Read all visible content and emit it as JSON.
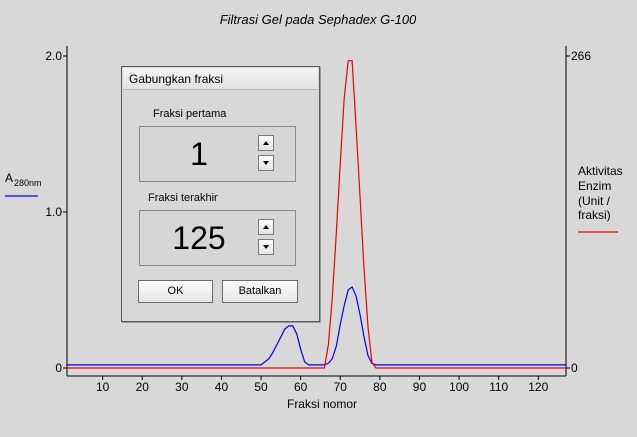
{
  "chart_data": {
    "type": "line",
    "title": "Filtrasi Gel pada Sephadex G-100",
    "xlabel": "Fraksi nomor",
    "ylabel_left": "A",
    "ylabel_left_sub": "280nm",
    "ylabel_right": [
      "Aktivitas",
      "Enzim",
      "(Unit /",
      "fraksi)"
    ],
    "xlim": [
      1,
      127
    ],
    "x_ticks": [
      10,
      20,
      30,
      40,
      50,
      60,
      70,
      80,
      90,
      100,
      110,
      120
    ],
    "ylim_left": [
      0,
      2.0
    ],
    "y_left_ticks": [
      "0",
      "1.0",
      "2.0"
    ],
    "ylim_right": [
      0,
      266
    ],
    "y_right_ticks": [
      "0",
      "266"
    ],
    "series": [
      {
        "name": "A",
        "axis": "left",
        "color": "#0000ee",
        "x": [
          1,
          49,
          50,
          51,
          52,
          53,
          54,
          55,
          56,
          57,
          58,
          59,
          60,
          61,
          62,
          63,
          64,
          65,
          66,
          67,
          68,
          69,
          70,
          71,
          72,
          73,
          74,
          75,
          76,
          77,
          78,
          79,
          80,
          127
        ],
        "y": [
          0.02,
          0.02,
          0.02,
          0.04,
          0.06,
          0.1,
          0.15,
          0.2,
          0.25,
          0.27,
          0.27,
          0.22,
          0.12,
          0.04,
          0.02,
          0.02,
          0.02,
          0.02,
          0.02,
          0.03,
          0.06,
          0.14,
          0.28,
          0.4,
          0.5,
          0.52,
          0.46,
          0.34,
          0.2,
          0.08,
          0.03,
          0.02,
          0.02,
          0.02
        ]
      },
      {
        "name": "Aktivitas Enzim",
        "axis": "right",
        "color": "#ee0000",
        "x": [
          1,
          66,
          67,
          68,
          69,
          70,
          71,
          72,
          73,
          74,
          75,
          76,
          77,
          78,
          79,
          127
        ],
        "y": [
          0,
          0,
          20,
          60,
          115,
          175,
          230,
          262,
          262,
          205,
          145,
          85,
          35,
          5,
          0,
          0
        ]
      }
    ],
    "grid": false,
    "legend": "side"
  },
  "dialog": {
    "title": "Gabungkan fraksi",
    "first": {
      "label": "Fraksi pertama",
      "value": "1"
    },
    "last": {
      "label": "Fraksi terakhir",
      "value": "125"
    },
    "ok_label": "OK",
    "cancel_label": "Batalkan",
    "icons": {
      "up": "spin-up-icon",
      "down": "spin-down-icon"
    }
  }
}
